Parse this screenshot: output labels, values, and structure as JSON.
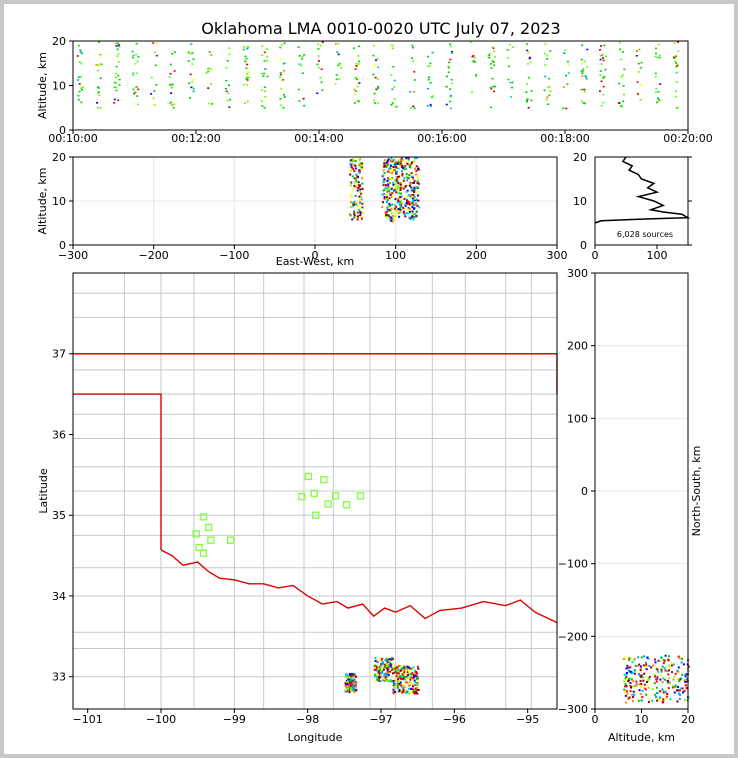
{
  "title": "Oklahoma LMA 0010-0020 UTC July 07, 2023",
  "colors": {
    "state_border": "#e00000",
    "county_lines": "#c8c8c8",
    "stations": "#80ff40",
    "axes": "#000000"
  },
  "chart_data": [
    {
      "id": "time_altitude",
      "type": "scatter",
      "ylabel": "Altitude, km",
      "ylim": [
        0,
        20
      ],
      "yticks": [
        0,
        10,
        20
      ],
      "xticks": [
        "00:10:00",
        "00:12:00",
        "00:14:00",
        "00:16:00",
        "00:18:00",
        "00:20:00"
      ],
      "xlim_minutes": [
        10,
        20
      ],
      "source_bands_minutes": [
        10.1,
        10.4,
        10.7,
        11.0,
        11.3,
        11.6,
        11.9,
        12.2,
        12.5,
        12.8,
        13.1,
        13.4,
        13.7,
        14.0,
        14.3,
        14.6,
        14.9,
        15.2,
        15.5,
        15.8,
        16.1,
        16.5,
        16.8,
        17.1,
        17.4,
        17.7,
        18.0,
        18.3,
        18.6,
        18.9,
        19.2,
        19.5,
        19.8
      ]
    },
    {
      "id": "ew_altitude",
      "type": "scatter",
      "xlabel": "East-West, km",
      "ylabel": "Altitude, km",
      "xlim": [
        -300,
        300
      ],
      "ylim": [
        0,
        20
      ],
      "xticks": [
        -300,
        -200,
        -100,
        0,
        100,
        200,
        300
      ],
      "yticks": [
        0,
        10,
        20
      ],
      "clusters": [
        {
          "x": [
            42,
            58
          ],
          "alt": [
            6,
            20
          ],
          "density": 0.45
        },
        {
          "x": [
            82,
            100
          ],
          "alt": [
            5.5,
            20
          ],
          "density": 0.6
        },
        {
          "x": [
            100,
            128
          ],
          "alt": [
            6,
            20
          ],
          "density": 0.85
        }
      ]
    },
    {
      "id": "altitude_histogram",
      "type": "line",
      "xlim": [
        0,
        150
      ],
      "ylim": [
        0,
        20
      ],
      "xticks": [
        0,
        100
      ],
      "yticks": [
        0,
        10,
        20
      ],
      "annotation": "6,028 sources",
      "profile": [
        [
          0,
          5
        ],
        [
          10,
          5.5
        ],
        [
          60,
          5.8
        ],
        [
          100,
          6
        ],
        [
          150,
          6.2
        ],
        [
          140,
          7
        ],
        [
          110,
          7.5
        ],
        [
          90,
          8
        ],
        [
          110,
          9
        ],
        [
          95,
          10
        ],
        [
          70,
          11
        ],
        [
          100,
          12
        ],
        [
          85,
          13
        ],
        [
          95,
          14
        ],
        [
          75,
          15
        ],
        [
          70,
          16
        ],
        [
          55,
          17
        ],
        [
          60,
          18
        ],
        [
          45,
          19
        ],
        [
          50,
          20
        ]
      ]
    },
    {
      "id": "plan_view",
      "type": "scatter",
      "xlabel": "Longitude",
      "ylabel": "Latitude",
      "xlim": [
        -101.2,
        -94.6
      ],
      "ylim": [
        32.6,
        38.0
      ],
      "xticks": [
        -101,
        -100,
        -99,
        -98,
        -97,
        -96,
        -95
      ],
      "yticks": [
        33,
        34,
        35,
        36,
        37
      ],
      "stations": [
        [
          -97.99,
          35.48
        ],
        [
          -97.78,
          35.44
        ],
        [
          -98.08,
          35.23
        ],
        [
          -97.91,
          35.27
        ],
        [
          -97.62,
          35.24
        ],
        [
          -97.72,
          35.14
        ],
        [
          -97.47,
          35.13
        ],
        [
          -97.28,
          35.24
        ],
        [
          -97.89,
          35.0
        ],
        [
          -99.42,
          34.98
        ],
        [
          -99.35,
          34.85
        ],
        [
          -99.52,
          34.77
        ],
        [
          -99.32,
          34.69
        ],
        [
          -99.48,
          34.6
        ],
        [
          -99.42,
          34.53
        ],
        [
          -99.05,
          34.69
        ]
      ],
      "clusters": [
        {
          "lon": [
            -97.5,
            -97.35
          ],
          "lat": [
            32.82,
            33.05
          ],
          "density": 0.5
        },
        {
          "lon": [
            -97.1,
            -96.85
          ],
          "lat": [
            32.95,
            33.25
          ],
          "density": 0.6
        },
        {
          "lon": [
            -96.85,
            -96.5
          ],
          "lat": [
            32.8,
            33.15
          ],
          "density": 0.85
        }
      ]
    },
    {
      "id": "ns_altitude",
      "type": "scatter",
      "xlabel": "Altitude, km",
      "ylabel": "North-South, km",
      "xlim": [
        0,
        20
      ],
      "ylim": [
        -300,
        300
      ],
      "xticks": [
        0,
        10,
        20
      ],
      "yticks": [
        -300,
        -200,
        -100,
        0,
        100,
        200,
        300
      ],
      "clusters": [
        {
          "alt": [
            6,
            20
          ],
          "ns": [
            -290,
            -225
          ],
          "density": 0.8
        }
      ]
    }
  ]
}
